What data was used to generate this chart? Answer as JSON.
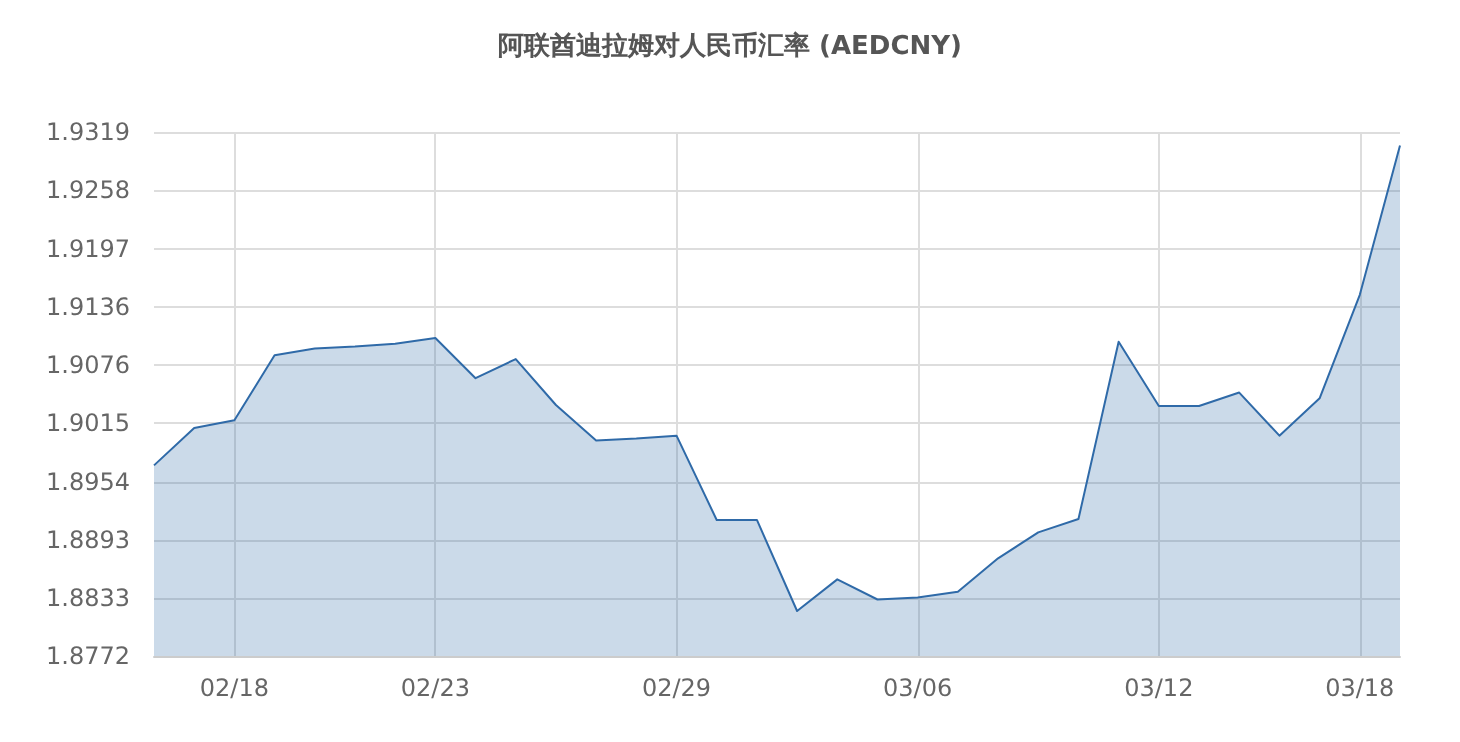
{
  "chart_data": {
    "type": "area",
    "title": "阿联酋迪拉姆对人民币汇率 (AEDCNY)",
    "categories": [
      null,
      null,
      "02/18",
      null,
      null,
      null,
      null,
      "02/23",
      null,
      null,
      null,
      null,
      null,
      "02/29",
      null,
      null,
      null,
      null,
      null,
      "03/06",
      null,
      null,
      null,
      null,
      null,
      "03/12",
      null,
      null,
      null,
      null,
      "03/18",
      null
    ],
    "series": [
      {
        "color": "#2f6aa8",
        "values": [
          1.8971,
          1.901,
          1.9018,
          1.9086,
          1.9093,
          1.9095,
          1.9098,
          1.9104,
          1.9062,
          1.9082,
          1.9034,
          1.8997,
          1.8999,
          1.9002,
          1.8914,
          1.8914,
          1.8819,
          1.8852,
          1.8831,
          1.8833,
          1.8839,
          1.8874,
          1.8901,
          1.8915,
          1.91,
          1.9033,
          1.9033,
          1.9047,
          1.9002,
          1.9041,
          1.9149,
          1.9305
        ]
      }
    ],
    "ylim": [
      1.8772,
      1.9319
    ],
    "yticks": [
      1.8772,
      1.8833,
      1.8893,
      1.8954,
      1.9015,
      1.9076,
      1.9136,
      1.9197,
      1.9258,
      1.9319
    ],
    "grid": true,
    "marker": "none"
  }
}
